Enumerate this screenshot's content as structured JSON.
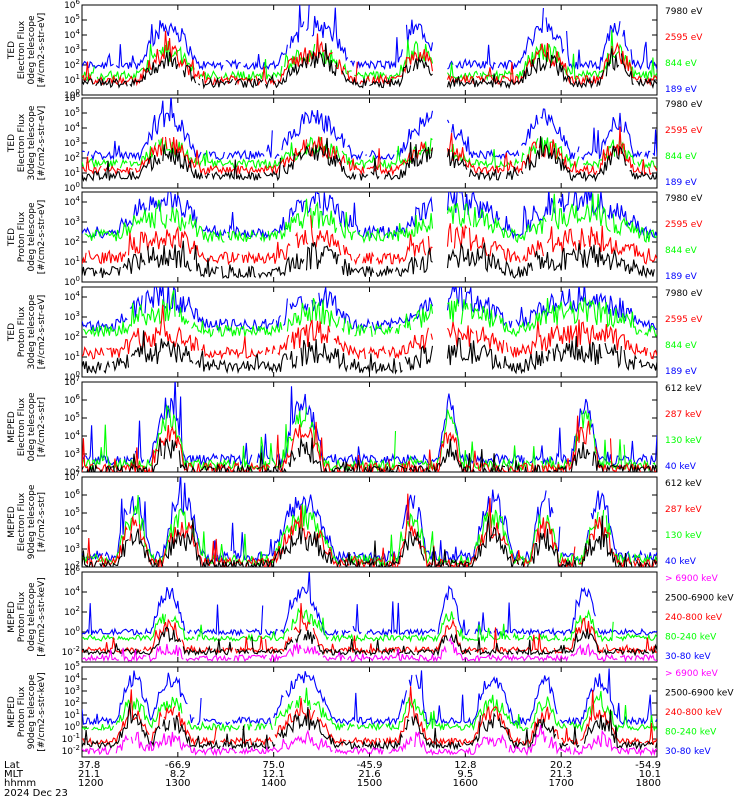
{
  "chart_data": {
    "type": "line",
    "title": "",
    "x": {
      "label_rows": [
        "Lat",
        "MLT",
        "hhmm"
      ],
      "ticks": [
        {
          "lat": "37.8",
          "mlt": "21.1",
          "hhmm": "1200"
        },
        {
          "lat": "-66.9",
          "mlt": "8.2",
          "hhmm": "1300"
        },
        {
          "lat": "75.0",
          "mlt": "12.1",
          "hhmm": "1400"
        },
        {
          "lat": "-45.9",
          "mlt": "21.6",
          "hhmm": "1500"
        },
        {
          "lat": "12.8",
          "mlt": "9.5",
          "hhmm": "1600"
        },
        {
          "lat": "20.2",
          "mlt": "21.3",
          "hhmm": "1700"
        },
        {
          "lat": "-54.9",
          "mlt": "10.1",
          "hhmm": "1800"
        }
      ],
      "date": "2024 Dec 23",
      "range_hhmm": [
        "1200",
        "1800"
      ]
    },
    "panels": [
      {
        "ylabel": [
          "TED",
          "Electron Flux",
          "0deg telescope",
          "[#/cm2-s-str-eV]"
        ],
        "ytick_exps": [
          0,
          1,
          2,
          3,
          4,
          5,
          6
        ],
        "ylim_exp": [
          0,
          6
        ],
        "log_y": true,
        "passes": [
          [
            0.1,
            0.2
          ],
          [
            0.34,
            0.47
          ],
          [
            0.55,
            0.62
          ],
          [
            0.76,
            0.85
          ],
          [
            0.9,
            0.96
          ]
        ],
        "series": [
          {
            "name": "7980 eV",
            "color": "#000000",
            "base": 0.8,
            "amp": 1.5
          },
          {
            "name": "2595 eV",
            "color": "#ff0000",
            "base": 1.0,
            "amp": 1.8
          },
          {
            "name": "844 eV",
            "color": "#00ff00",
            "base": 1.3,
            "amp": 1.6
          },
          {
            "name": "189 eV",
            "color": "#0000ff",
            "base": 2.0,
            "amp": 2.6
          }
        ]
      },
      {
        "ylabel": [
          "TED",
          "Electron Flux",
          "30deg telescope",
          "[#/cm2-s-str-eV]"
        ],
        "ytick_exps": [
          0,
          1,
          2,
          3,
          4,
          5,
          6
        ],
        "ylim_exp": [
          0,
          6
        ],
        "log_y": true,
        "passes": [
          [
            0.1,
            0.2
          ],
          [
            0.34,
            0.47
          ],
          [
            0.55,
            0.68
          ],
          [
            0.76,
            0.85
          ],
          [
            0.9,
            0.96
          ]
        ],
        "series": [
          {
            "name": "7980 eV",
            "color": "#000000",
            "base": 0.8,
            "amp": 1.5
          },
          {
            "name": "2595 eV",
            "color": "#ff0000",
            "base": 1.2,
            "amp": 1.6
          },
          {
            "name": "844 eV",
            "color": "#00ff00",
            "base": 1.6,
            "amp": 1.2
          },
          {
            "name": "189 eV",
            "color": "#0000ff",
            "base": 2.2,
            "amp": 2.4
          }
        ]
      },
      {
        "ylabel": [
          "TED",
          "Proton Flux",
          "0deg telescope",
          "[#/cm2-s-str-eV]"
        ],
        "ytick_exps": [
          0,
          1,
          2,
          3,
          4
        ],
        "ylim_exp": [
          0,
          4.5
        ],
        "log_y": true,
        "passes": [
          [
            0.06,
            0.22
          ],
          [
            0.34,
            0.47
          ],
          [
            0.55,
            0.75
          ],
          [
            0.76,
            0.98
          ]
        ],
        "series": [
          {
            "name": "7980 eV",
            "color": "#000000",
            "base": 0.5,
            "amp": 0.8
          },
          {
            "name": "2595 eV",
            "color": "#ff0000",
            "base": 1.2,
            "amp": 1.0
          },
          {
            "name": "844 eV",
            "color": "#00ff00",
            "base": 2.3,
            "amp": 1.0
          },
          {
            "name": "189 eV",
            "color": "#0000ff",
            "base": 2.5,
            "amp": 1.6
          }
        ]
      },
      {
        "ylabel": [
          "TED",
          "Proton Flux",
          "30deg telescope",
          "[#/cm2-s-str-eV]"
        ],
        "ytick_exps": [
          0,
          1,
          2,
          3,
          4
        ],
        "ylim_exp": [
          0,
          4.5
        ],
        "log_y": true,
        "passes": [
          [
            0.06,
            0.22
          ],
          [
            0.34,
            0.47
          ],
          [
            0.55,
            0.75
          ],
          [
            0.76,
            0.98
          ]
        ],
        "series": [
          {
            "name": "7980 eV",
            "color": "#000000",
            "base": 0.5,
            "amp": 0.8
          },
          {
            "name": "2595 eV",
            "color": "#ff0000",
            "base": 1.2,
            "amp": 1.0
          },
          {
            "name": "844 eV",
            "color": "#00ff00",
            "base": 2.3,
            "amp": 1.0
          },
          {
            "name": "189 eV",
            "color": "#0000ff",
            "base": 2.6,
            "amp": 1.4
          }
        ]
      },
      {
        "ylabel": [
          "MEPED",
          "Electron Flux",
          "0deg telescope",
          "[#/cm2-s-str]"
        ],
        "ytick_exps": [
          2,
          3,
          4,
          5,
          6,
          7
        ],
        "ylim_exp": [
          2,
          7
        ],
        "log_y": true,
        "passes": [
          [
            0.12,
            0.18
          ],
          [
            0.35,
            0.42
          ],
          [
            0.62,
            0.66
          ],
          [
            0.85,
            0.9
          ]
        ],
        "series": [
          {
            "name": "612 keV",
            "color": "#000000",
            "base": 2.1,
            "amp": 1.2
          },
          {
            "name": "287 keV",
            "color": "#ff0000",
            "base": 2.2,
            "amp": 2.0
          },
          {
            "name": "130 keV",
            "color": "#00ff00",
            "base": 2.4,
            "amp": 2.6
          },
          {
            "name": "40 keV",
            "color": "#0000ff",
            "base": 2.7,
            "amp": 3.0
          }
        ]
      },
      {
        "ylabel": [
          "MEPED",
          "Electron Flux",
          "90deg telescope",
          "[#/cm2-s-str]"
        ],
        "ytick_exps": [
          2,
          3,
          4,
          5,
          6,
          7
        ],
        "ylim_exp": [
          2,
          7
        ],
        "log_y": true,
        "passes": [
          [
            0.06,
            0.12
          ],
          [
            0.14,
            0.21
          ],
          [
            0.33,
            0.44
          ],
          [
            0.55,
            0.6
          ],
          [
            0.68,
            0.75
          ],
          [
            0.78,
            0.83
          ],
          [
            0.87,
            0.93
          ]
        ],
        "series": [
          {
            "name": "612 keV",
            "color": "#000000",
            "base": 2.1,
            "amp": 1.5
          },
          {
            "name": "287 keV",
            "color": "#ff0000",
            "base": 2.2,
            "amp": 2.0
          },
          {
            "name": "130 keV",
            "color": "#00ff00",
            "base": 2.4,
            "amp": 2.4
          },
          {
            "name": "40 keV",
            "color": "#0000ff",
            "base": 2.6,
            "amp": 3.0
          }
        ]
      },
      {
        "ylabel": [
          "MEPED",
          "Proton Flux",
          "0deg telescope",
          "[#/cm2-s-str-keV]"
        ],
        "ytick_exps": [
          -2,
          0,
          2,
          4,
          6
        ],
        "ylim_exp": [
          -3,
          6
        ],
        "log_y": true,
        "passes": [
          [
            0.12,
            0.18
          ],
          [
            0.35,
            0.42
          ],
          [
            0.62,
            0.66
          ],
          [
            0.85,
            0.9
          ]
        ],
        "series": [
          {
            "name": "> 6900 keV",
            "color": "#ff00ff",
            "base": -2.6,
            "amp": 1.0
          },
          {
            "name": "2500-6900 keV",
            "color": "#000000",
            "base": -2.0,
            "amp": 1.8
          },
          {
            "name": "240-800 keV",
            "color": "#ff0000",
            "base": -1.8,
            "amp": 2.5
          },
          {
            "name": "80-240 keV",
            "color": "#00ff00",
            "base": -0.6,
            "amp": 2.2
          },
          {
            "name": "30-80 keV",
            "color": "#0000ff",
            "base": 0.0,
            "amp": 4.0
          }
        ]
      },
      {
        "ylabel": [
          "MEPED",
          "Proton Flux",
          "90deg telescope",
          "[#/cm2-s-str-keV]"
        ],
        "ytick_exps": [
          -2,
          -1,
          0,
          1,
          2,
          3,
          4,
          5
        ],
        "ylim_exp": [
          -2.5,
          5
        ],
        "log_y": true,
        "passes": [
          [
            0.06,
            0.12
          ],
          [
            0.12,
            0.19
          ],
          [
            0.33,
            0.44
          ],
          [
            0.55,
            0.6
          ],
          [
            0.68,
            0.75
          ],
          [
            0.78,
            0.83
          ],
          [
            0.87,
            0.93
          ]
        ],
        "series": [
          {
            "name": "> 6900 keV",
            "color": "#ff00ff",
            "base": -2.0,
            "amp": 1.0
          },
          {
            "name": "2500-6900 keV",
            "color": "#000000",
            "base": -1.5,
            "amp": 2.0
          },
          {
            "name": "240-800 keV",
            "color": "#ff0000",
            "base": -1.2,
            "amp": 2.4
          },
          {
            "name": "80-240 keV",
            "color": "#00ff00",
            "base": 0.0,
            "amp": 2.0
          },
          {
            "name": "30-80 keV",
            "color": "#0000ff",
            "base": 0.5,
            "amp": 3.5
          }
        ]
      }
    ]
  }
}
